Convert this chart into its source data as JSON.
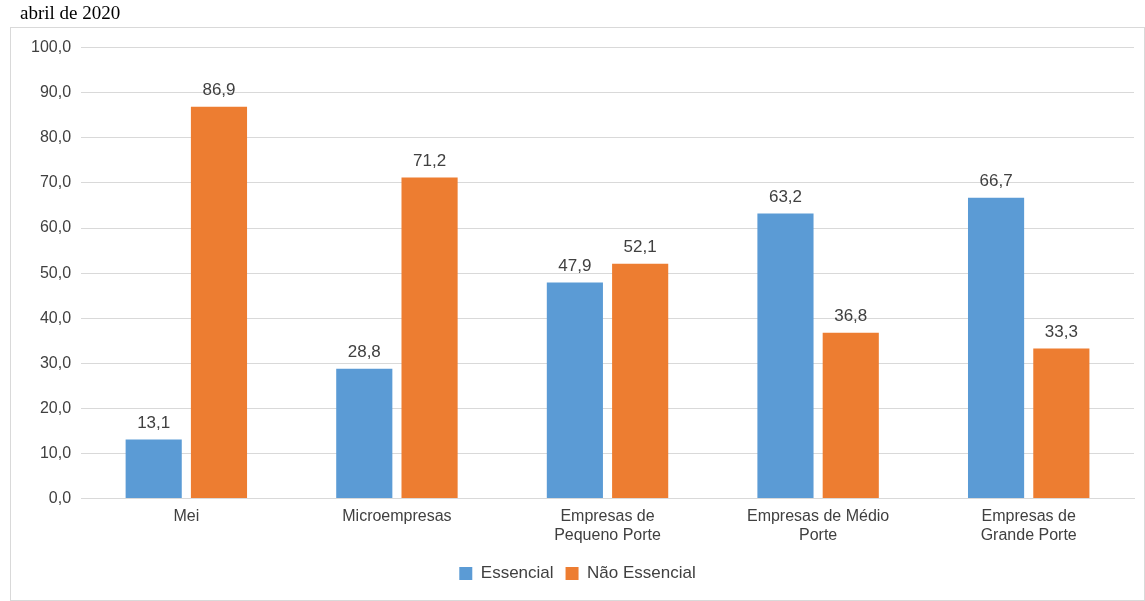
{
  "chart_data": {
    "type": "bar",
    "title": "abril de 2020",
    "categories": [
      "Mei",
      "Microempresas",
      "Empresas de Pequeno Porte",
      "Empresas de Médio Porte",
      "Empresas de Grande Porte"
    ],
    "series": [
      {
        "name": "Essencial",
        "color": "#5b9bd5",
        "values": [
          13.1,
          28.8,
          47.9,
          63.2,
          66.7
        ],
        "value_labels": [
          "13,1",
          "28,8",
          "47,9",
          "63,2",
          "66,7"
        ]
      },
      {
        "name": "Não Essencial",
        "color": "#ed7d31",
        "values": [
          86.9,
          71.2,
          52.1,
          36.8,
          33.3
        ],
        "value_labels": [
          "86,9",
          "71,2",
          "52,1",
          "36,8",
          "33,3"
        ]
      }
    ],
    "ylim": [
      0,
      100
    ],
    "yticks": [
      {
        "value": 0,
        "label": "0,0"
      },
      {
        "value": 10,
        "label": "10,0"
      },
      {
        "value": 20,
        "label": "20,0"
      },
      {
        "value": 30,
        "label": "30,0"
      },
      {
        "value": 40,
        "label": "40,0"
      },
      {
        "value": 50,
        "label": "50,0"
      },
      {
        "value": 60,
        "label": "60,0"
      },
      {
        "value": 70,
        "label": "70,0"
      },
      {
        "value": 80,
        "label": "80,0"
      },
      {
        "value": 90,
        "label": "90,0"
      },
      {
        "value": 100,
        "label": "100,0"
      }
    ],
    "grid": "y",
    "legend": "bottom"
  }
}
